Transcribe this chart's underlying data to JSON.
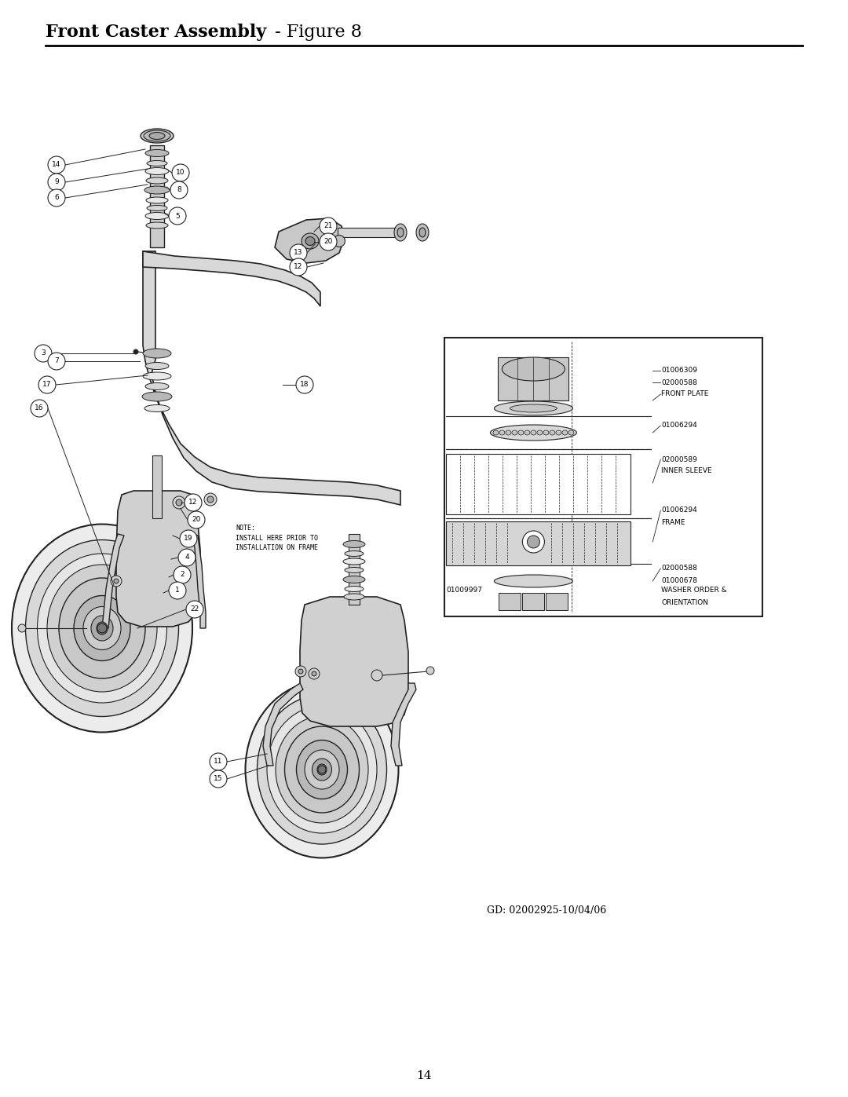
{
  "title_bold": "Front Caster Assembly",
  "title_regular": " - Figure 8",
  "page_number": "14",
  "gd_text": "GD: 02002925-10/04/06",
  "background_color": "#ffffff",
  "fig_width": 10.8,
  "fig_height": 13.97,
  "dpi": 100,
  "note_text": "NOTE:\nINSTALL HERE PRIOR TO\nINSTALLATION ON FRAME"
}
